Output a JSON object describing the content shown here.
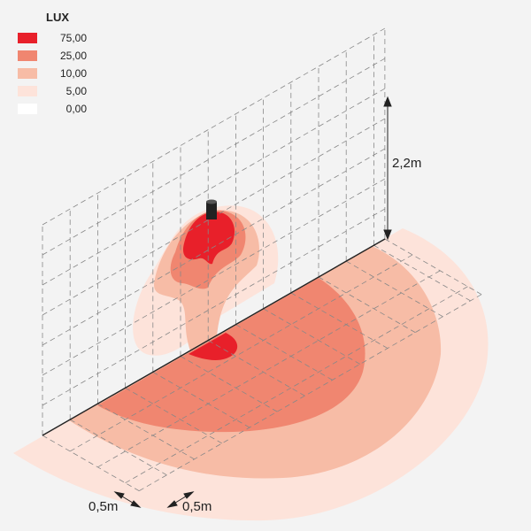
{
  "legend": {
    "title": "LUX",
    "items": [
      {
        "label": "75,00",
        "color": "#e8202a"
      },
      {
        "label": "25,00",
        "color": "#f08670"
      },
      {
        "label": "10,00",
        "color": "#f7bca6"
      },
      {
        "label": "5,00",
        "color": "#fde3da"
      },
      {
        "label": "0,00",
        "color": "#ffffff"
      }
    ]
  },
  "dimensions": {
    "height": "2,2m",
    "grid_x": "0,5m",
    "grid_y": "0,5m"
  },
  "colors": {
    "background": "#f3f3f3",
    "grid": "#888888"
  }
}
